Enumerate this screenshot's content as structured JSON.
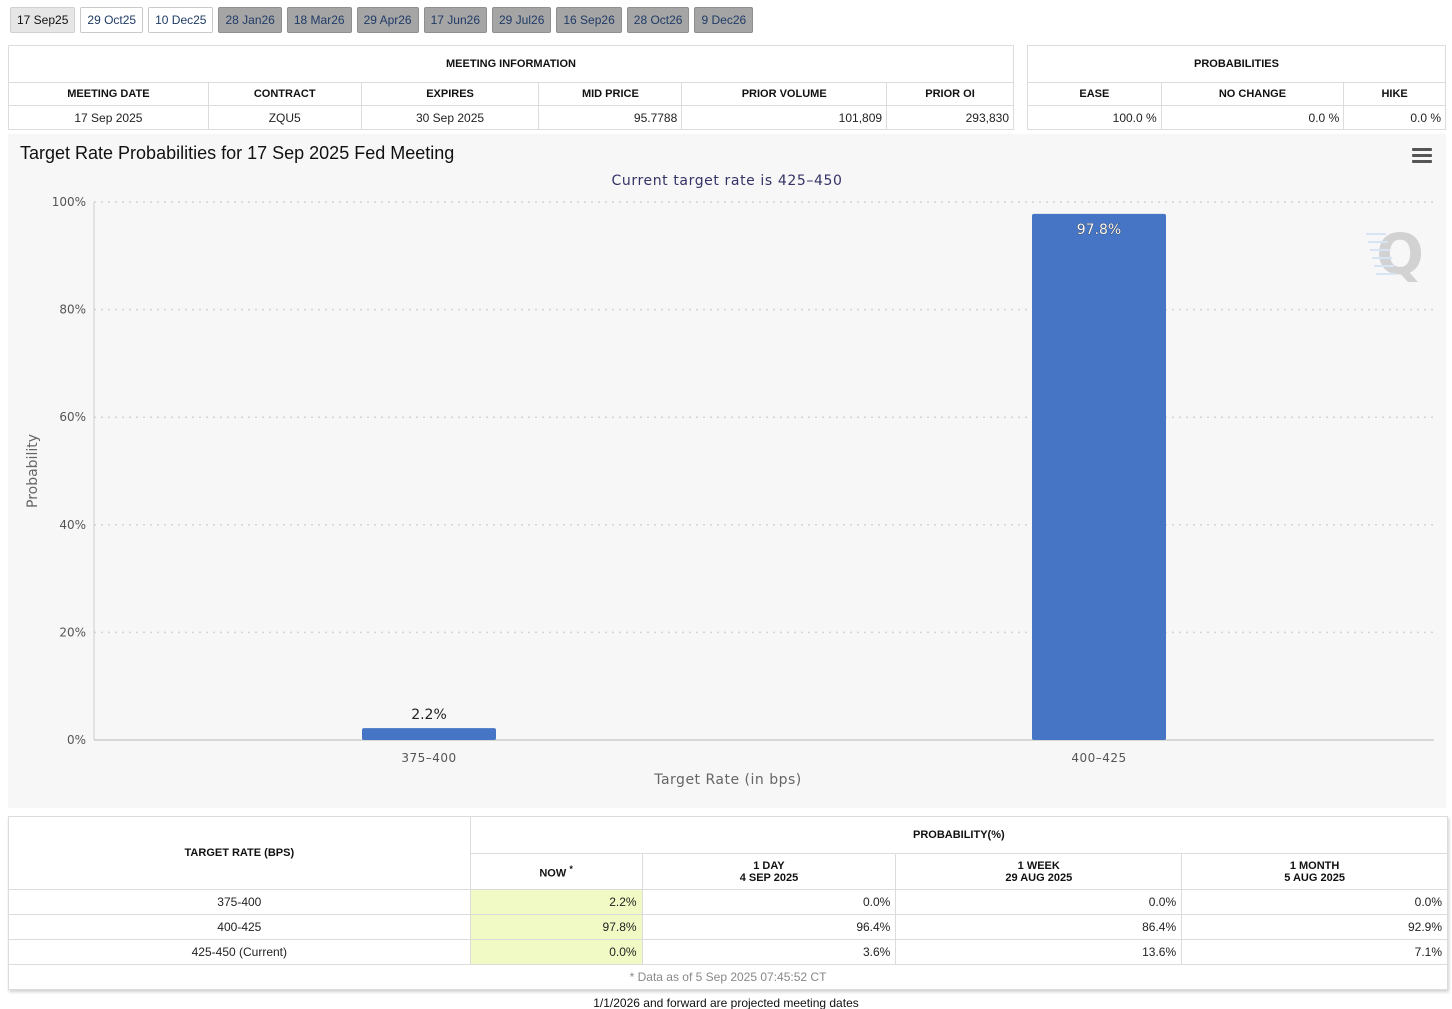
{
  "tabs": [
    {
      "label": "17 Sep25",
      "state": "selected"
    },
    {
      "label": "29 Oct25",
      "state": "normal"
    },
    {
      "label": "10 Dec25",
      "state": "normal"
    },
    {
      "label": "28 Jan26",
      "state": "projected"
    },
    {
      "label": "18 Mar26",
      "state": "projected"
    },
    {
      "label": "29 Apr26",
      "state": "projected"
    },
    {
      "label": "17 Jun26",
      "state": "projected"
    },
    {
      "label": "29 Jul26",
      "state": "projected"
    },
    {
      "label": "16 Sep26",
      "state": "projected"
    },
    {
      "label": "28 Oct26",
      "state": "projected"
    },
    {
      "label": "9 Dec26",
      "state": "projected"
    }
  ],
  "meeting_info": {
    "title": "MEETING INFORMATION",
    "headers": {
      "meeting_date": "MEETING DATE",
      "contract": "CONTRACT",
      "expires": "EXPIRES",
      "mid_price": "MID PRICE",
      "prior_volume": "PRIOR VOLUME",
      "prior_oi": "PRIOR OI"
    },
    "values": {
      "meeting_date": "17 Sep 2025",
      "contract": "ZQU5",
      "expires": "30 Sep 2025",
      "mid_price": "95.7788",
      "prior_volume": "101,809",
      "prior_oi": "293,830"
    }
  },
  "probabilities": {
    "title": "PROBABILITIES",
    "headers": {
      "ease": "EASE",
      "no_change": "NO CHANGE",
      "hike": "HIKE"
    },
    "values": {
      "ease": "100.0 %",
      "no_change": "0.0 %",
      "hike": "0.0 %"
    }
  },
  "chart": {
    "title": "Target Rate Probabilities for 17 Sep 2025 Fed Meeting",
    "subtitle": "Current target rate is 425–450",
    "watermark": "Q"
  },
  "chart_data": {
    "type": "bar",
    "categories": [
      "375–400",
      "400–425"
    ],
    "values": [
      2.2,
      97.8
    ],
    "data_labels": [
      "2.2%",
      "97.8%"
    ],
    "title": "Target Rate Probabilities for 17 Sep 2025 Fed Meeting",
    "subtitle": "Current target rate is 425–450",
    "xlabel": "Target Rate (in bps)",
    "ylabel": "Probability",
    "ylim": [
      0,
      100
    ],
    "yticks": [
      0,
      20,
      40,
      60,
      80,
      100
    ],
    "ytick_labels": [
      "0%",
      "20%",
      "40%",
      "60%",
      "80%",
      "100%"
    ],
    "grid": true,
    "bar_color": "#4575c4"
  },
  "target_table": {
    "header_rate": "TARGET RATE (BPS)",
    "header_prob": "PROBABILITY(%)",
    "col_now": "NOW",
    "col_now_mark": "*",
    "col_1day": "1 DAY",
    "col_1day_date": "4 SEP 2025",
    "col_1week": "1 WEEK",
    "col_1week_date": "29 AUG 2025",
    "col_1month": "1 MONTH",
    "col_1month_date": "5 AUG 2025",
    "rows": [
      {
        "rate": "375-400",
        "now": "2.2%",
        "day": "0.0%",
        "week": "0.0%",
        "month": "0.0%"
      },
      {
        "rate": "400-425",
        "now": "97.8%",
        "day": "96.4%",
        "week": "86.4%",
        "month": "92.9%"
      },
      {
        "rate": "425-450 (Current)",
        "now": "0.0%",
        "day": "3.6%",
        "week": "13.6%",
        "month": "7.1%"
      }
    ],
    "footnote": "* Data as of 5 Sep 2025 07:45:52 CT"
  },
  "footer_note": "1/1/2026 and forward are projected meeting dates",
  "colors": {
    "now_highlight": "#f1fac5",
    "projected_tab": "#a5a5a5",
    "accent": "#4575c4"
  }
}
